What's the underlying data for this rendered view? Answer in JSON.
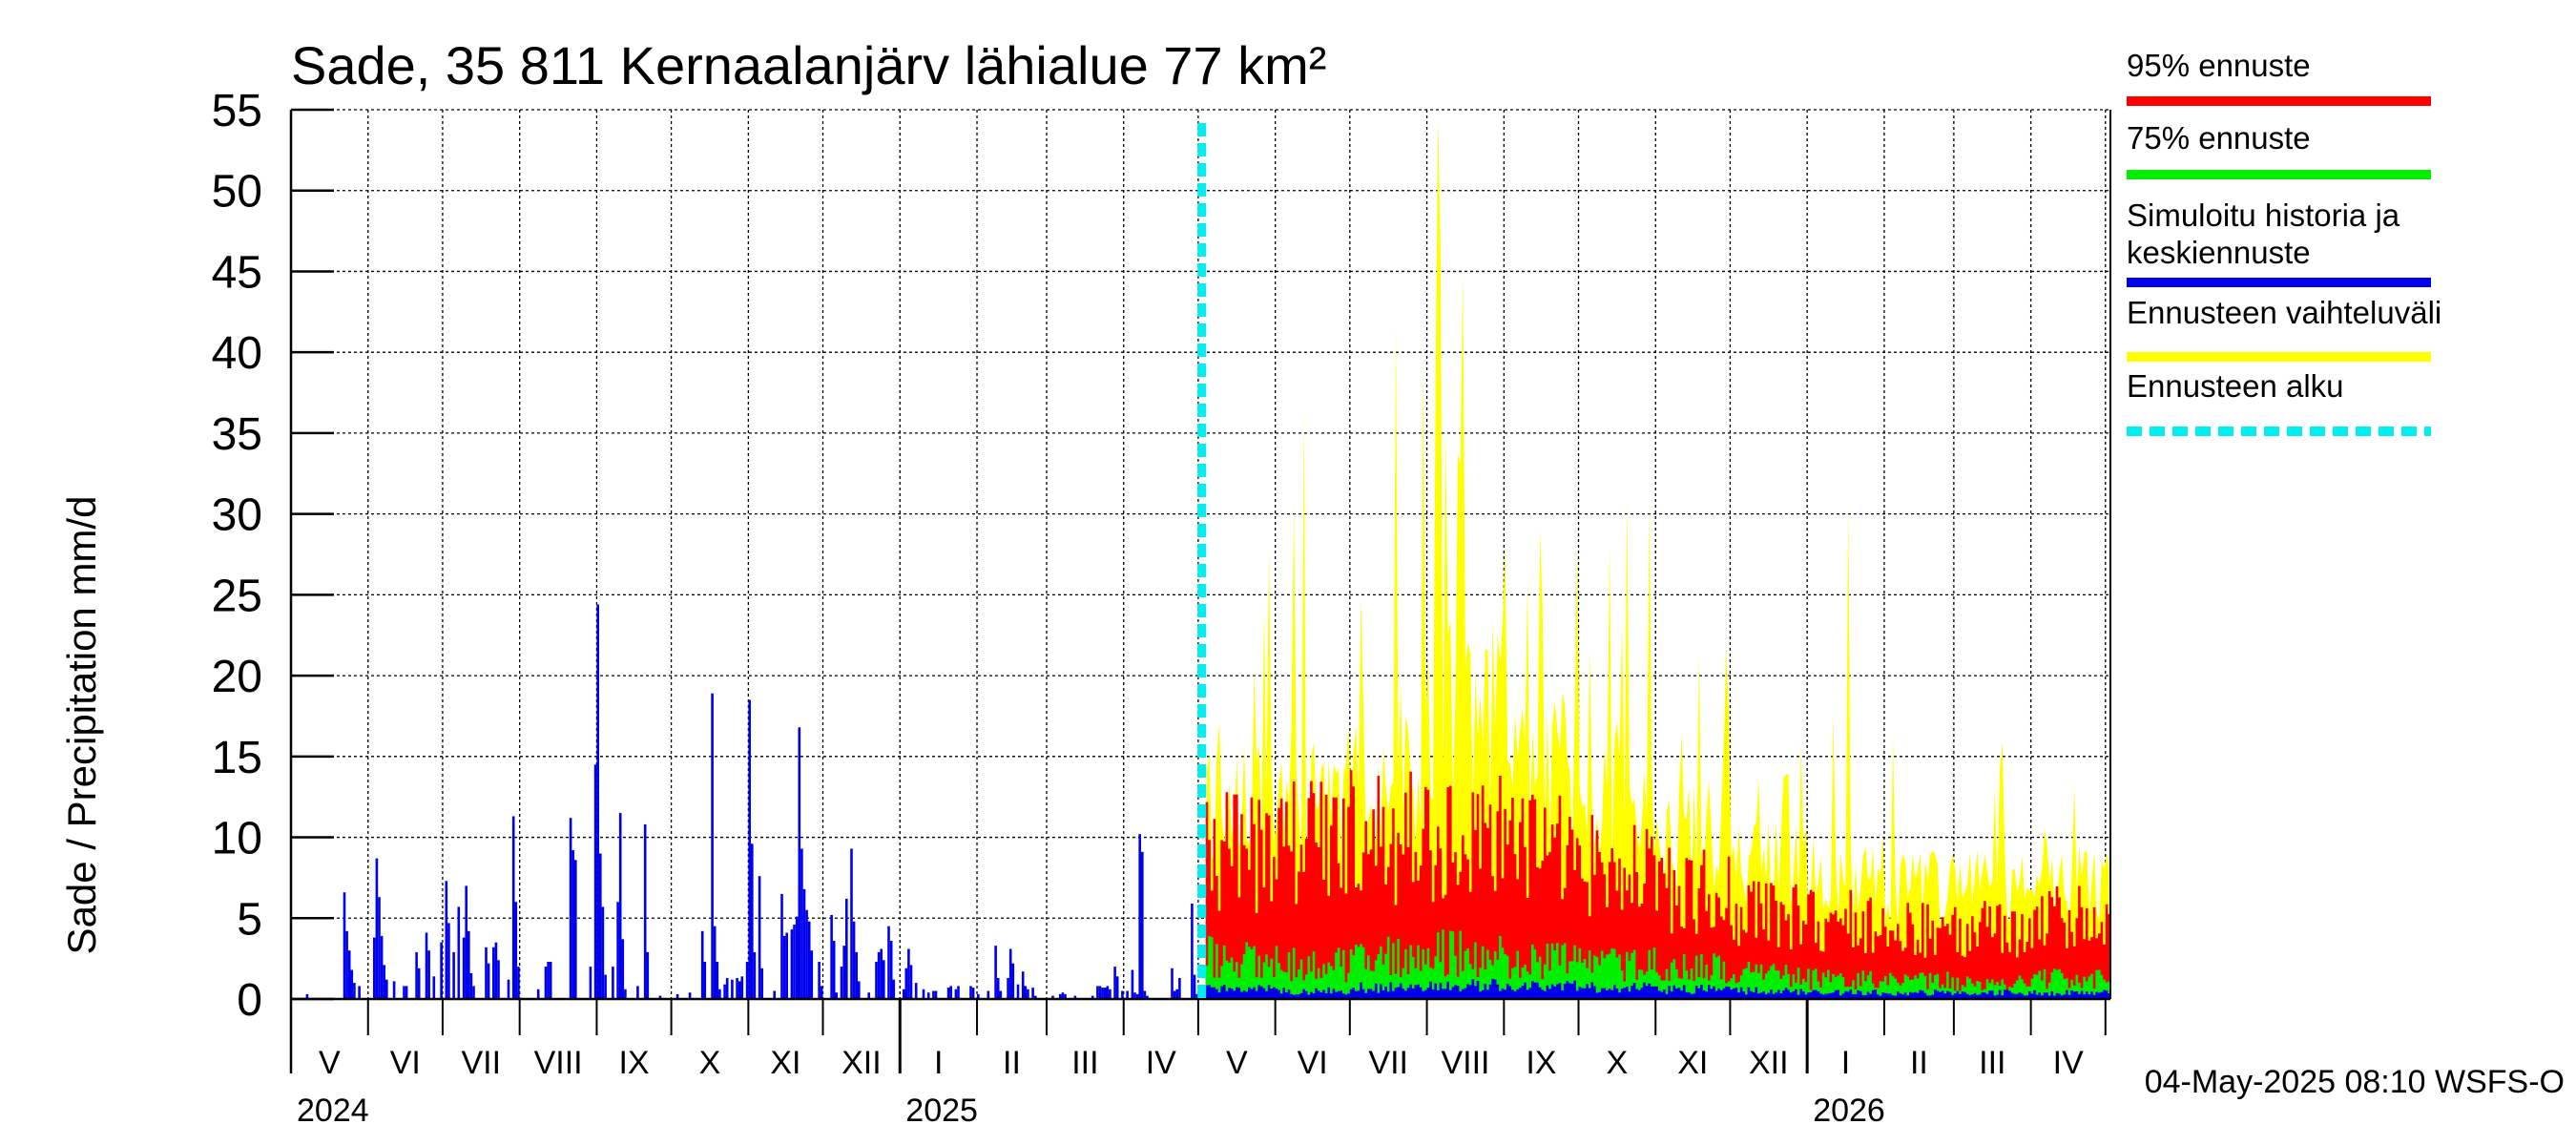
{
  "chart_data": {
    "type": "bar",
    "title": "Sade, 35 811 Kernaalanjärv lähialue 77 km²",
    "ylabel": "Sade / Precipitation   mm/d",
    "ylim": [
      0,
      55
    ],
    "yticks": [
      0,
      5,
      10,
      15,
      20,
      25,
      30,
      35,
      40,
      45,
      50,
      55
    ],
    "x_start": "2024-05-01",
    "x_end": "2026-05-03",
    "forecast_start": "2025-05-04",
    "month_labels": [
      "V",
      "VI",
      "VII",
      "VIII",
      "IX",
      "X",
      "XI",
      "XII",
      "I",
      "II",
      "III",
      "IV",
      "V",
      "VI",
      "VII",
      "VIII",
      "IX",
      "X",
      "XI",
      "XII",
      "I",
      "II",
      "III",
      "IV"
    ],
    "year_labels": [
      "2024",
      "2025",
      "2026"
    ],
    "footer": "04-May-2025 08:10 WSFS-O",
    "legend": [
      {
        "label": "95% ennuste",
        "color": "#ff0000",
        "style": "solid"
      },
      {
        "label": "75% ennuste",
        "color": "#00ee00",
        "style": "solid"
      },
      {
        "label": "Simuloitu historia ja keskiennuste",
        "color": "#0000ee",
        "style": "solid"
      },
      {
        "label": "Ennusteen vaihteluväli",
        "color": "#ffff00",
        "style": "solid"
      },
      {
        "label": "Ennusteen alku",
        "color": "#00eeee",
        "style": "dashed"
      }
    ],
    "history_peaks": [
      {
        "date": "2024-05-07",
        "value": 0.3
      },
      {
        "date": "2024-05-22",
        "value": 6.6
      },
      {
        "date": "2024-05-23",
        "value": 4.2
      },
      {
        "date": "2024-05-24",
        "value": 3.0
      },
      {
        "date": "2024-05-25",
        "value": 1.8
      },
      {
        "date": "2024-05-26",
        "value": 1.0
      },
      {
        "date": "2024-05-28",
        "value": 0.8
      },
      {
        "date": "2024-06-03",
        "value": 3.8
      },
      {
        "date": "2024-06-04",
        "value": 8.7
      },
      {
        "date": "2024-06-05",
        "value": 6.3
      },
      {
        "date": "2024-06-06",
        "value": 3.9
      },
      {
        "date": "2024-06-07",
        "value": 2.1
      },
      {
        "date": "2024-06-08",
        "value": 1.2
      },
      {
        "date": "2024-06-11",
        "value": 1.1
      },
      {
        "date": "2024-06-15",
        "value": 0.8
      },
      {
        "date": "2024-06-16",
        "value": 0.8
      },
      {
        "date": "2024-06-20",
        "value": 2.9
      },
      {
        "date": "2024-06-21",
        "value": 1.9
      },
      {
        "date": "2024-06-24",
        "value": 4.1
      },
      {
        "date": "2024-06-25",
        "value": 3.0
      },
      {
        "date": "2024-06-27",
        "value": 1.4
      },
      {
        "date": "2024-06-30",
        "value": 3.5
      },
      {
        "date": "2024-07-02",
        "value": 7.3
      },
      {
        "date": "2024-07-03",
        "value": 4.7
      },
      {
        "date": "2024-07-05",
        "value": 2.9
      },
      {
        "date": "2024-07-07",
        "value": 5.7
      },
      {
        "date": "2024-07-09",
        "value": 3.8
      },
      {
        "date": "2024-07-10",
        "value": 7.0
      },
      {
        "date": "2024-07-11",
        "value": 4.2
      },
      {
        "date": "2024-07-12",
        "value": 1.6
      },
      {
        "date": "2024-07-13",
        "value": 0.8
      },
      {
        "date": "2024-07-18",
        "value": 3.2
      },
      {
        "date": "2024-07-19",
        "value": 2.2
      },
      {
        "date": "2024-07-21",
        "value": 3.2
      },
      {
        "date": "2024-07-22",
        "value": 3.5
      },
      {
        "date": "2024-07-23",
        "value": 2.4
      },
      {
        "date": "2024-07-27",
        "value": 1.2
      },
      {
        "date": "2024-07-29",
        "value": 11.3
      },
      {
        "date": "2024-07-30",
        "value": 6.0
      },
      {
        "date": "2024-07-31",
        "value": 2.0
      },
      {
        "date": "2024-08-08",
        "value": 0.6
      },
      {
        "date": "2024-08-11",
        "value": 2.0
      },
      {
        "date": "2024-08-12",
        "value": 2.3
      },
      {
        "date": "2024-08-13",
        "value": 2.3
      },
      {
        "date": "2024-08-21",
        "value": 11.2
      },
      {
        "date": "2024-08-22",
        "value": 9.2
      },
      {
        "date": "2024-08-23",
        "value": 8.6
      },
      {
        "date": "2024-08-29",
        "value": 2.0
      },
      {
        "date": "2024-08-31",
        "value": 14.5
      },
      {
        "date": "2024-09-01",
        "value": 24.4
      },
      {
        "date": "2024-09-02",
        "value": 9.0
      },
      {
        "date": "2024-09-03",
        "value": 5.7
      },
      {
        "date": "2024-09-04",
        "value": 1.5
      },
      {
        "date": "2024-09-07",
        "value": 2.0
      },
      {
        "date": "2024-09-09",
        "value": 6.0
      },
      {
        "date": "2024-09-10",
        "value": 11.5
      },
      {
        "date": "2024-09-11",
        "value": 3.7
      },
      {
        "date": "2024-09-12",
        "value": 0.6
      },
      {
        "date": "2024-09-17",
        "value": 0.8
      },
      {
        "date": "2024-09-20",
        "value": 10.8
      },
      {
        "date": "2024-09-21",
        "value": 2.9
      },
      {
        "date": "2024-09-26",
        "value": 0.2
      },
      {
        "date": "2024-10-03",
        "value": 0.3
      },
      {
        "date": "2024-10-08",
        "value": 0.4
      },
      {
        "date": "2024-10-13",
        "value": 4.2
      },
      {
        "date": "2024-10-14",
        "value": 2.3
      },
      {
        "date": "2024-10-17",
        "value": 18.9
      },
      {
        "date": "2024-10-18",
        "value": 4.5
      },
      {
        "date": "2024-10-19",
        "value": 2.3
      },
      {
        "date": "2024-10-20",
        "value": 0.6
      },
      {
        "date": "2024-10-22",
        "value": 0.9
      },
      {
        "date": "2024-10-23",
        "value": 1.3
      },
      {
        "date": "2024-10-25",
        "value": 1.2
      },
      {
        "date": "2024-10-27",
        "value": 1.3
      },
      {
        "date": "2024-10-28",
        "value": 1.1
      },
      {
        "date": "2024-10-29",
        "value": 1.4
      },
      {
        "date": "2024-10-31",
        "value": 2.3
      },
      {
        "date": "2024-11-01",
        "value": 18.5
      },
      {
        "date": "2024-11-02",
        "value": 9.6
      },
      {
        "date": "2024-11-03",
        "value": 2.9
      },
      {
        "date": "2024-11-05",
        "value": 7.6
      },
      {
        "date": "2024-11-06",
        "value": 1.9
      },
      {
        "date": "2024-11-11",
        "value": 0.5
      },
      {
        "date": "2024-11-14",
        "value": 6.5
      },
      {
        "date": "2024-11-15",
        "value": 3.9
      },
      {
        "date": "2024-11-16",
        "value": 4.1
      },
      {
        "date": "2024-11-18",
        "value": 4.3
      },
      {
        "date": "2024-11-19",
        "value": 4.6
      },
      {
        "date": "2024-11-20",
        "value": 5.1
      },
      {
        "date": "2024-11-21",
        "value": 16.8
      },
      {
        "date": "2024-11-22",
        "value": 9.3
      },
      {
        "date": "2024-11-23",
        "value": 6.8
      },
      {
        "date": "2024-11-24",
        "value": 5.5
      },
      {
        "date": "2024-11-25",
        "value": 4.8
      },
      {
        "date": "2024-11-26",
        "value": 3.0
      },
      {
        "date": "2024-11-29",
        "value": 2.3
      },
      {
        "date": "2024-11-30",
        "value": 0.8
      },
      {
        "date": "2024-12-04",
        "value": 5.2
      },
      {
        "date": "2024-12-05",
        "value": 3.6
      },
      {
        "date": "2024-12-06",
        "value": 0.4
      },
      {
        "date": "2024-12-08",
        "value": 2.0
      },
      {
        "date": "2024-12-09",
        "value": 3.3
      },
      {
        "date": "2024-12-10",
        "value": 6.2
      },
      {
        "date": "2024-12-12",
        "value": 9.3
      },
      {
        "date": "2024-12-13",
        "value": 4.8
      },
      {
        "date": "2024-12-14",
        "value": 2.9
      },
      {
        "date": "2024-12-15",
        "value": 1.1
      },
      {
        "date": "2024-12-19",
        "value": 0.4
      },
      {
        "date": "2024-12-22",
        "value": 2.3
      },
      {
        "date": "2024-12-23",
        "value": 2.9
      },
      {
        "date": "2024-12-24",
        "value": 3.1
      },
      {
        "date": "2024-12-25",
        "value": 2.4
      },
      {
        "date": "2024-12-27",
        "value": 4.5
      },
      {
        "date": "2024-12-28",
        "value": 3.6
      },
      {
        "date": "2024-12-29",
        "value": 1.2
      },
      {
        "date": "2025-01-02",
        "value": 0.6
      },
      {
        "date": "2025-01-03",
        "value": 1.9
      },
      {
        "date": "2025-01-04",
        "value": 3.1
      },
      {
        "date": "2025-01-05",
        "value": 2.1
      },
      {
        "date": "2025-01-07",
        "value": 1.0
      },
      {
        "date": "2025-01-10",
        "value": 0.6
      },
      {
        "date": "2025-01-12",
        "value": 0.4
      },
      {
        "date": "2025-01-14",
        "value": 0.5
      },
      {
        "date": "2025-01-15",
        "value": 0.5
      },
      {
        "date": "2025-01-20",
        "value": 0.7
      },
      {
        "date": "2025-01-21",
        "value": 0.8
      },
      {
        "date": "2025-01-23",
        "value": 0.6
      },
      {
        "date": "2025-01-24",
        "value": 0.8
      },
      {
        "date": "2025-01-29",
        "value": 0.8
      },
      {
        "date": "2025-01-30",
        "value": 0.7
      },
      {
        "date": "2025-02-01",
        "value": 0.3
      },
      {
        "date": "2025-02-05",
        "value": 0.5
      },
      {
        "date": "2025-02-08",
        "value": 3.3
      },
      {
        "date": "2025-02-09",
        "value": 1.3
      },
      {
        "date": "2025-02-10",
        "value": 0.5
      },
      {
        "date": "2025-02-13",
        "value": 1.3
      },
      {
        "date": "2025-02-14",
        "value": 3.1
      },
      {
        "date": "2025-02-15",
        "value": 2.2
      },
      {
        "date": "2025-02-17",
        "value": 0.9
      },
      {
        "date": "2025-02-19",
        "value": 1.7
      },
      {
        "date": "2025-02-20",
        "value": 0.8
      },
      {
        "date": "2025-02-21",
        "value": 0.6
      },
      {
        "date": "2025-02-23",
        "value": 0.7
      },
      {
        "date": "2025-02-24",
        "value": 0.2
      },
      {
        "date": "2025-03-03",
        "value": 0.2
      },
      {
        "date": "2025-03-06",
        "value": 0.3
      },
      {
        "date": "2025-03-07",
        "value": 0.4
      },
      {
        "date": "2025-03-08",
        "value": 0.3
      },
      {
        "date": "2025-03-12",
        "value": 0.2
      },
      {
        "date": "2025-03-19",
        "value": 0.2
      },
      {
        "date": "2025-03-21",
        "value": 0.8
      },
      {
        "date": "2025-03-22",
        "value": 0.8
      },
      {
        "date": "2025-03-23",
        "value": 0.7
      },
      {
        "date": "2025-03-24",
        "value": 0.7
      },
      {
        "date": "2025-03-25",
        "value": 0.8
      },
      {
        "date": "2025-03-26",
        "value": 0.6
      },
      {
        "date": "2025-03-28",
        "value": 2.0
      },
      {
        "date": "2025-03-29",
        "value": 1.4
      },
      {
        "date": "2025-03-31",
        "value": 0.5
      },
      {
        "date": "2025-04-02",
        "value": 0.5
      },
      {
        "date": "2025-04-04",
        "value": 1.8
      },
      {
        "date": "2025-04-05",
        "value": 0.4
      },
      {
        "date": "2025-04-06",
        "value": 0.3
      },
      {
        "date": "2025-04-07",
        "value": 10.2
      },
      {
        "date": "2025-04-08",
        "value": 9.1
      },
      {
        "date": "2025-04-09",
        "value": 0.5
      },
      {
        "date": "2025-04-10",
        "value": 0.2
      },
      {
        "date": "2025-04-20",
        "value": 1.9
      },
      {
        "date": "2025-04-21",
        "value": 0.5
      },
      {
        "date": "2025-04-22",
        "value": 0.6
      },
      {
        "date": "2025-04-23",
        "value": 1.3
      },
      {
        "date": "2025-04-28",
        "value": 5.9
      },
      {
        "date": "2025-04-29",
        "value": 1.5
      },
      {
        "date": "2025-04-30",
        "value": 0.3
      }
    ],
    "forecast_monthly": [
      {
        "month": "2025-05",
        "range_max_peak": 29.5,
        "range_typical": 15.0,
        "p95": 9.5,
        "p75": 2.8,
        "mean": 0.6
      },
      {
        "month": "2025-06",
        "range_max_peak": 36.5,
        "range_typical": 15.5,
        "p95": 10.0,
        "p75": 2.3,
        "mean": 0.5
      },
      {
        "month": "2025-07",
        "range_max_peak": 41.8,
        "range_typical": 17.0,
        "p95": 10.5,
        "p75": 2.8,
        "mean": 0.7
      },
      {
        "month": "2025-08",
        "range_max_peak": 54.5,
        "range_typical": 20.5,
        "p95": 10.5,
        "p75": 3.0,
        "mean": 0.9
      },
      {
        "month": "2025-09",
        "range_max_peak": 31.0,
        "range_typical": 16.5,
        "p95": 9.5,
        "p75": 2.4,
        "mean": 0.8
      },
      {
        "month": "2025-10",
        "range_max_peak": 30.8,
        "range_typical": 15.0,
        "p95": 8.5,
        "p75": 2.2,
        "mean": 0.7
      },
      {
        "month": "2025-11",
        "range_max_peak": 25.0,
        "range_typical": 12.0,
        "p95": 7.0,
        "p75": 2.0,
        "mean": 0.6
      },
      {
        "month": "2025-12",
        "range_max_peak": 16.5,
        "range_typical": 10.0,
        "p95": 5.5,
        "p75": 1.6,
        "mean": 0.5
      },
      {
        "month": "2026-01",
        "range_max_peak": 30.5,
        "range_typical": 9.0,
        "p95": 5.0,
        "p75": 1.3,
        "mean": 0.4
      },
      {
        "month": "2026-02",
        "range_max_peak": 16.5,
        "range_typical": 8.0,
        "p95": 4.6,
        "p75": 1.2,
        "mean": 0.4
      },
      {
        "month": "2026-03",
        "range_max_peak": 16.0,
        "range_typical": 8.0,
        "p95": 4.6,
        "p75": 1.1,
        "mean": 0.4
      },
      {
        "month": "2026-04",
        "range_max_peak": 13.5,
        "range_typical": 8.5,
        "p95": 5.5,
        "p75": 1.3,
        "mean": 0.4
      }
    ]
  }
}
